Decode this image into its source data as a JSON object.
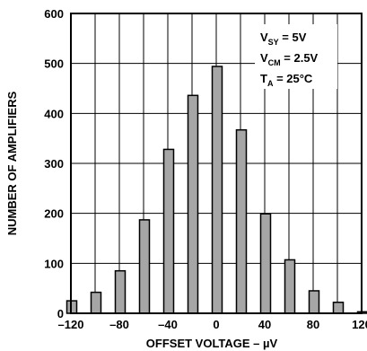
{
  "chart_data": {
    "type": "bar",
    "x": [
      -120,
      -100,
      -80,
      -60,
      -40,
      -20,
      0,
      20,
      40,
      60,
      80,
      100,
      120
    ],
    "values": [
      25,
      42,
      85,
      187,
      328,
      436,
      494,
      367,
      199,
      107,
      45,
      22,
      3
    ],
    "xlabel_main": "OFFSET VOLTAGE – ",
    "xlabel_unit": "µV",
    "ylabel": "NUMBER OF AMPLIFIERS",
    "xlim": [
      -120,
      120
    ],
    "ylim": [
      0,
      600
    ],
    "x_ticks": [
      -120,
      -80,
      -40,
      0,
      40,
      80,
      120
    ],
    "x_tick_labels": [
      "–120",
      "–80",
      "–40",
      "0",
      "40",
      "80",
      "120"
    ],
    "y_ticks": [
      0,
      100,
      200,
      300,
      400,
      500,
      600
    ],
    "y_tick_labels": [
      "0",
      "100",
      "200",
      "300",
      "400",
      "500",
      "600"
    ],
    "grid": true,
    "bar_color": "#a6a6a6",
    "conditions": [
      {
        "main": "V",
        "sub": "SY",
        "rest": " = 5V"
      },
      {
        "main": "V",
        "sub": "CM",
        "rest": " = 2.5V"
      },
      {
        "main": "T",
        "sub": "A",
        "rest": " = 25°C"
      }
    ]
  }
}
